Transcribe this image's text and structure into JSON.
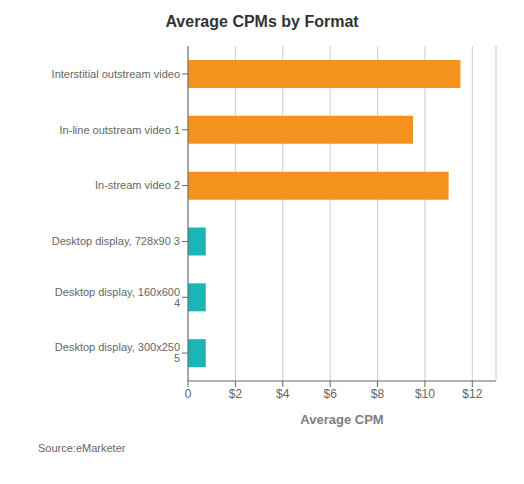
{
  "chart_data": {
    "type": "bar",
    "orientation": "horizontal",
    "title": "Average CPMs by Format",
    "xlabel": "Average CPM",
    "categories": [
      "Desktop display, 300x250 5",
      "Desktop display, 160x600 4",
      "Desktop display, 728x90 3",
      "In-stream video 2",
      "In-line outstream video 1",
      "Interstitial outstream video"
    ],
    "values": [
      0.75,
      0.75,
      0.75,
      11.0,
      9.5,
      11.5
    ],
    "colors": [
      "#1ab5b5",
      "#1ab5b5",
      "#1ab5b5",
      "#f5921e",
      "#f5921e",
      "#f5921e"
    ],
    "xlim": [
      0,
      13
    ],
    "xticks": [
      0,
      {
        "value": 2,
        "label": "$2"
      },
      {
        "value": 4,
        "label": "$4"
      },
      {
        "value": 6,
        "label": "$6"
      },
      {
        "value": 8,
        "label": "$8"
      },
      {
        "value": 10,
        "label": "$10"
      },
      {
        "value": 12,
        "label": "$12"
      }
    ],
    "grid": true,
    "annotations": [
      "Source:eMarketer"
    ]
  }
}
